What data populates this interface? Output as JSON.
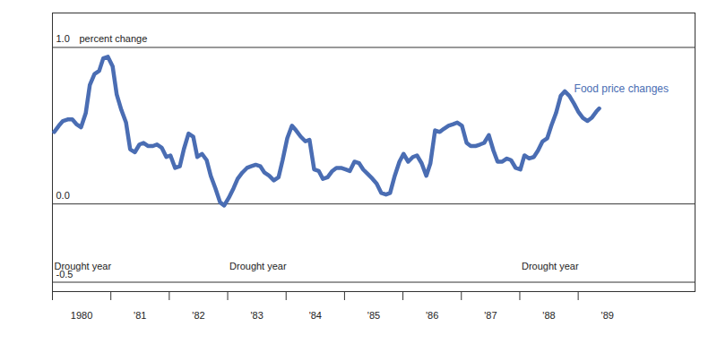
{
  "chart_data": {
    "type": "line",
    "y_label": "percent change",
    "x": [
      1980.03,
      1980.11,
      1980.18,
      1980.26,
      1980.34,
      1980.41,
      1980.49,
      1980.57,
      1980.64,
      1980.72,
      1980.8,
      1980.87,
      1980.95,
      1981.03,
      1981.1,
      1981.18,
      1981.26,
      1981.33,
      1981.41,
      1981.49,
      1981.56,
      1981.64,
      1981.72,
      1981.79,
      1981.87,
      1981.95,
      1982.02,
      1982.1,
      1982.18,
      1982.25,
      1982.33,
      1982.41,
      1982.48,
      1982.56,
      1982.64,
      1982.71,
      1982.79,
      1982.87,
      1982.94,
      1983.02,
      1983.1,
      1983.17,
      1983.25,
      1983.33,
      1983.4,
      1983.48,
      1983.56,
      1983.63,
      1983.71,
      1983.79,
      1983.87,
      1983.94,
      1984.02,
      1984.1,
      1984.17,
      1984.25,
      1984.33,
      1984.4,
      1984.48,
      1984.56,
      1984.63,
      1984.71,
      1984.79,
      1984.86,
      1984.94,
      1985.02,
      1985.09,
      1985.17,
      1985.25,
      1985.32,
      1985.4,
      1985.48,
      1985.55,
      1985.63,
      1985.71,
      1985.78,
      1985.86,
      1985.94,
      1986.01,
      1986.09,
      1986.17,
      1986.24,
      1986.32,
      1986.4,
      1986.47,
      1986.55,
      1986.63,
      1986.7,
      1986.78,
      1986.86,
      1986.93,
      1987.01,
      1987.09,
      1987.16,
      1987.24,
      1987.32,
      1987.39,
      1987.47,
      1987.55,
      1987.62,
      1987.7,
      1987.78,
      1987.85,
      1987.93,
      1988.01,
      1988.08,
      1988.16,
      1988.24,
      1988.31,
      1988.39,
      1988.47,
      1988.54,
      1988.62,
      1988.7,
      1988.77,
      1988.85,
      1988.93,
      1989.0,
      1989.08,
      1989.16,
      1989.23,
      1989.31,
      1989.36
    ],
    "series": [
      {
        "name": "Food price changes",
        "color": "#4a6db3",
        "values": [
          0.46,
          0.5,
          0.53,
          0.54,
          0.54,
          0.51,
          0.49,
          0.58,
          0.76,
          0.83,
          0.85,
          0.93,
          0.94,
          0.88,
          0.7,
          0.6,
          0.52,
          0.35,
          0.33,
          0.38,
          0.39,
          0.37,
          0.37,
          0.38,
          0.36,
          0.3,
          0.31,
          0.23,
          0.24,
          0.35,
          0.45,
          0.43,
          0.3,
          0.32,
          0.28,
          0.18,
          0.1,
          0.01,
          -0.01,
          0.04,
          0.1,
          0.16,
          0.2,
          0.23,
          0.24,
          0.25,
          0.24,
          0.2,
          0.18,
          0.15,
          0.17,
          0.28,
          0.42,
          0.5,
          0.47,
          0.43,
          0.4,
          0.41,
          0.22,
          0.21,
          0.16,
          0.17,
          0.21,
          0.23,
          0.23,
          0.22,
          0.21,
          0.27,
          0.26,
          0.22,
          0.19,
          0.16,
          0.13,
          0.07,
          0.06,
          0.07,
          0.18,
          0.27,
          0.32,
          0.27,
          0.3,
          0.31,
          0.26,
          0.18,
          0.26,
          0.47,
          0.46,
          0.48,
          0.5,
          0.51,
          0.52,
          0.5,
          0.39,
          0.37,
          0.37,
          0.38,
          0.39,
          0.44,
          0.34,
          0.27,
          0.27,
          0.29,
          0.28,
          0.23,
          0.22,
          0.31,
          0.29,
          0.3,
          0.34,
          0.4,
          0.42,
          0.5,
          0.58,
          0.69,
          0.72,
          0.69,
          0.64,
          0.59,
          0.55,
          0.53,
          0.55,
          0.59,
          0.61
        ]
      }
    ],
    "xlim": [
      1980,
      1991
    ],
    "xticks": [
      {
        "value": 1980,
        "label": "1980"
      },
      {
        "value": 1981,
        "label": "'81"
      },
      {
        "value": 1982,
        "label": "'82"
      },
      {
        "value": 1983,
        "label": "'83"
      },
      {
        "value": 1984,
        "label": "'84"
      },
      {
        "value": 1985,
        "label": "'85"
      },
      {
        "value": 1986,
        "label": "'86"
      },
      {
        "value": 1987,
        "label": "'87"
      },
      {
        "value": 1988,
        "label": "'88"
      },
      {
        "value": 1989,
        "label": "'89"
      }
    ],
    "ylim": [
      -0.56,
      1.22
    ],
    "yticks": [
      {
        "value": -0.5,
        "label": "-0.5"
      },
      {
        "value": 0,
        "label": "0.0"
      },
      {
        "value": 1,
        "label": "1.0"
      }
    ],
    "grid": true,
    "annotations": [
      {
        "text": "Drought year",
        "x": 1980,
        "y": -0.4
      },
      {
        "text": "Drought year",
        "x": 1983,
        "y": -0.4
      },
      {
        "text": "Drought year",
        "x": 1988,
        "y": -0.4
      }
    ]
  }
}
